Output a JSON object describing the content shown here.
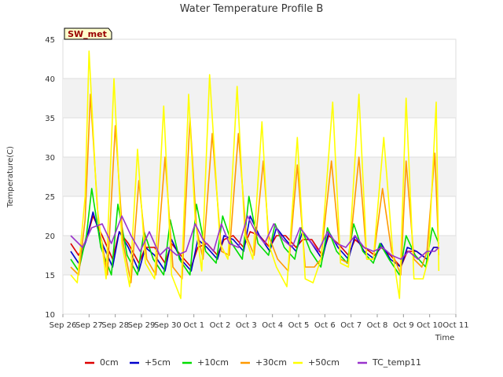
{
  "chart_data": {
    "type": "line",
    "title": "Water Temperature Profile B",
    "badge": "SW_met",
    "xlabel": "Time",
    "ylabel": "Temperature(C)",
    "ylim": [
      10,
      45
    ],
    "yticks": [
      10,
      15,
      20,
      25,
      30,
      35,
      40,
      45
    ],
    "xlim": [
      0,
      15
    ],
    "xticks": [
      {
        "value": 0,
        "label": "Sep 26"
      },
      {
        "value": 1,
        "label": "Sep 27"
      },
      {
        "value": 2,
        "label": "Sep 28"
      },
      {
        "value": 3,
        "label": "Sep 29"
      },
      {
        "value": 4,
        "label": "Sep 30"
      },
      {
        "value": 5,
        "label": "Oct 1"
      },
      {
        "value": 6,
        "label": "Oct 2"
      },
      {
        "value": 7,
        "label": "Oct 3"
      },
      {
        "value": 8,
        "label": "Oct 4"
      },
      {
        "value": 9,
        "label": "Oct 5"
      },
      {
        "value": 10,
        "label": "Oct 6"
      },
      {
        "value": 11,
        "label": "Oct 7"
      },
      {
        "value": 12,
        "label": "Oct 8"
      },
      {
        "value": 13,
        "label": "Oct 9"
      },
      {
        "value": 14,
        "label": "Oct 10"
      },
      {
        "value": 15,
        "label": "Oct 11"
      }
    ],
    "grid": true,
    "legend_position": "bottom",
    "series": [
      {
        "name": "0cm",
        "color": "#dd0000",
        "x": [
          0.3,
          0.6,
          0.9,
          1.15,
          1.5,
          1.9,
          2.15,
          2.5,
          2.9,
          3.15,
          3.5,
          3.9,
          4.15,
          4.5,
          4.9,
          5.15,
          5.5,
          5.9,
          6.15,
          6.5,
          6.9,
          7.15,
          7.5,
          7.9,
          8.15,
          8.5,
          8.9,
          9.15,
          9.5,
          9.9,
          10.15,
          10.5,
          10.9,
          11.15,
          11.5,
          11.9,
          12.15,
          12.5,
          12.9,
          13.15,
          13.5,
          13.9,
          14.15,
          14.35
        ],
        "y": [
          19.0,
          17.5,
          19.5,
          22.5,
          20.0,
          17.0,
          20.5,
          19.0,
          16.5,
          18.5,
          18.5,
          16.5,
          19.0,
          17.5,
          16.0,
          18.5,
          19.0,
          17.5,
          19.5,
          20.0,
          18.5,
          20.5,
          20.0,
          18.5,
          20.0,
          20.0,
          18.5,
          19.5,
          19.5,
          17.5,
          20.0,
          19.0,
          17.5,
          19.5,
          18.5,
          17.5,
          18.5,
          17.5,
          16.0,
          18.0,
          18.0,
          17.0,
          18.5,
          18.5
        ]
      },
      {
        "name": "+5cm",
        "color": "#0000cc",
        "x": [
          0.3,
          0.6,
          0.9,
          1.15,
          1.5,
          1.9,
          2.15,
          2.5,
          2.9,
          3.15,
          3.5,
          3.9,
          4.15,
          4.5,
          4.9,
          5.15,
          5.5,
          5.9,
          6.15,
          6.5,
          6.9,
          7.15,
          7.5,
          7.9,
          8.15,
          8.5,
          8.9,
          9.15,
          9.5,
          9.9,
          10.15,
          10.5,
          10.9,
          11.15,
          11.5,
          11.9,
          12.15,
          12.5,
          12.9,
          13.15,
          13.5,
          13.9,
          14.15,
          14.35
        ],
        "y": [
          18.0,
          16.5,
          19.5,
          23.0,
          19.0,
          16.0,
          20.5,
          18.5,
          15.5,
          18.5,
          17.5,
          15.5,
          19.5,
          17.0,
          15.5,
          19.5,
          18.5,
          17.0,
          20.0,
          19.5,
          18.0,
          22.5,
          20.0,
          18.0,
          21.0,
          19.5,
          18.0,
          20.5,
          19.0,
          17.0,
          20.5,
          18.5,
          17.0,
          20.0,
          18.0,
          17.0,
          19.0,
          17.0,
          16.0,
          18.5,
          18.0,
          17.0,
          18.5,
          18.5
        ]
      },
      {
        "name": "+10cm",
        "color": "#00dd00",
        "x": [
          0.3,
          0.6,
          0.9,
          1.1,
          1.45,
          1.85,
          2.1,
          2.45,
          2.85,
          3.1,
          3.45,
          3.85,
          4.1,
          4.45,
          4.85,
          5.1,
          5.45,
          5.85,
          6.1,
          6.45,
          6.85,
          7.1,
          7.45,
          7.85,
          8.1,
          8.45,
          8.85,
          9.1,
          9.45,
          9.85,
          10.1,
          10.45,
          10.85,
          11.1,
          11.45,
          11.85,
          12.1,
          12.45,
          12.85,
          13.1,
          13.45,
          13.85,
          14.1,
          14.35
        ],
        "y": [
          17.0,
          15.5,
          20.0,
          26.0,
          18.5,
          15.0,
          24.0,
          17.5,
          15.0,
          20.5,
          17.0,
          15.0,
          22.0,
          17.0,
          15.0,
          24.0,
          18.0,
          16.5,
          22.5,
          19.0,
          17.0,
          25.0,
          19.0,
          17.5,
          21.5,
          18.5,
          17.0,
          21.0,
          18.0,
          16.0,
          21.0,
          18.0,
          16.5,
          21.5,
          18.0,
          16.5,
          19.0,
          17.0,
          15.0,
          20.0,
          17.5,
          16.0,
          21.0,
          19.0
        ]
      },
      {
        "name": "+30cm",
        "color": "#ff9900",
        "x": [
          0.3,
          0.6,
          0.85,
          1.05,
          1.35,
          1.7,
          2.0,
          2.3,
          2.6,
          2.9,
          3.2,
          3.55,
          3.9,
          4.2,
          4.55,
          4.85,
          5.1,
          5.35,
          5.7,
          6.05,
          6.35,
          6.7,
          7.0,
          7.3,
          7.65,
          7.85,
          8.2,
          8.6,
          8.95,
          9.25,
          9.6,
          9.85,
          10.25,
          10.6,
          10.9,
          11.3,
          11.6,
          11.85,
          12.2,
          12.55,
          12.9,
          13.1,
          13.4,
          13.7,
          13.9,
          14.2,
          14.35
        ],
        "y": [
          16.0,
          15.0,
          22.0,
          38.0,
          22.0,
          15.0,
          34.0,
          19.0,
          14.0,
          27.0,
          17.0,
          15.0,
          30.0,
          16.0,
          14.5,
          35.0,
          21.0,
          17.0,
          33.0,
          18.0,
          17.5,
          33.0,
          20.0,
          17.5,
          29.5,
          20.0,
          17.0,
          15.5,
          29.0,
          16.0,
          16.0,
          17.0,
          29.5,
          17.0,
          16.5,
          30.0,
          17.0,
          17.0,
          26.0,
          18.0,
          15.0,
          29.5,
          17.0,
          16.0,
          18.0,
          30.5,
          17.5
        ]
      },
      {
        "name": "+50cm",
        "color": "#ffff00",
        "x": [
          0.3,
          0.55,
          0.85,
          1.0,
          1.3,
          1.65,
          1.95,
          2.25,
          2.55,
          2.85,
          3.15,
          3.5,
          3.85,
          4.15,
          4.5,
          4.8,
          5.05,
          5.3,
          5.6,
          6.0,
          6.3,
          6.65,
          6.95,
          7.25,
          7.6,
          7.85,
          8.15,
          8.55,
          8.95,
          9.25,
          9.55,
          9.85,
          10.3,
          10.6,
          10.9,
          11.3,
          11.6,
          11.85,
          12.25,
          12.6,
          12.85,
          13.1,
          13.4,
          13.75,
          13.95,
          14.25,
          14.35
        ],
        "y": [
          15.0,
          14.0,
          25.0,
          43.5,
          24.0,
          14.5,
          40.0,
          19.0,
          13.5,
          31.0,
          16.5,
          14.5,
          36.5,
          15.0,
          12.0,
          38.0,
          22.0,
          15.5,
          40.5,
          19.0,
          17.0,
          39.0,
          20.0,
          17.0,
          34.5,
          19.0,
          16.0,
          13.5,
          32.5,
          14.5,
          14.0,
          17.0,
          37.0,
          16.5,
          16.0,
          38.0,
          17.0,
          17.0,
          32.5,
          17.5,
          12.0,
          37.5,
          14.5,
          14.5,
          17.0,
          37.0,
          15.5
        ]
      },
      {
        "name": "TC_temp11",
        "color": "#9933cc",
        "x": [
          0.3,
          0.75,
          1.1,
          1.5,
          1.85,
          2.25,
          2.6,
          2.95,
          3.3,
          3.7,
          4.0,
          4.35,
          4.7,
          5.05,
          5.35,
          5.75,
          6.05,
          6.35,
          6.7,
          7.05,
          7.35,
          7.7,
          8.05,
          8.4,
          8.75,
          9.05,
          9.4,
          9.75,
          10.1,
          10.45,
          10.8,
          11.15,
          11.5,
          11.85,
          12.2,
          12.55,
          12.9,
          13.2,
          13.55,
          13.9,
          14.2,
          14.35
        ],
        "y": [
          20.0,
          18.5,
          21.0,
          21.5,
          19.0,
          22.5,
          20.0,
          18.0,
          20.5,
          17.5,
          18.5,
          17.5,
          18.0,
          21.5,
          19.5,
          18.0,
          21.5,
          19.0,
          18.5,
          22.5,
          20.5,
          19.0,
          21.5,
          19.5,
          18.5,
          21.0,
          19.5,
          18.0,
          20.5,
          19.0,
          18.5,
          20.0,
          18.5,
          18.0,
          18.5,
          17.5,
          17.0,
          18.0,
          17.0,
          18.0,
          18.0,
          18.5
        ]
      }
    ]
  }
}
